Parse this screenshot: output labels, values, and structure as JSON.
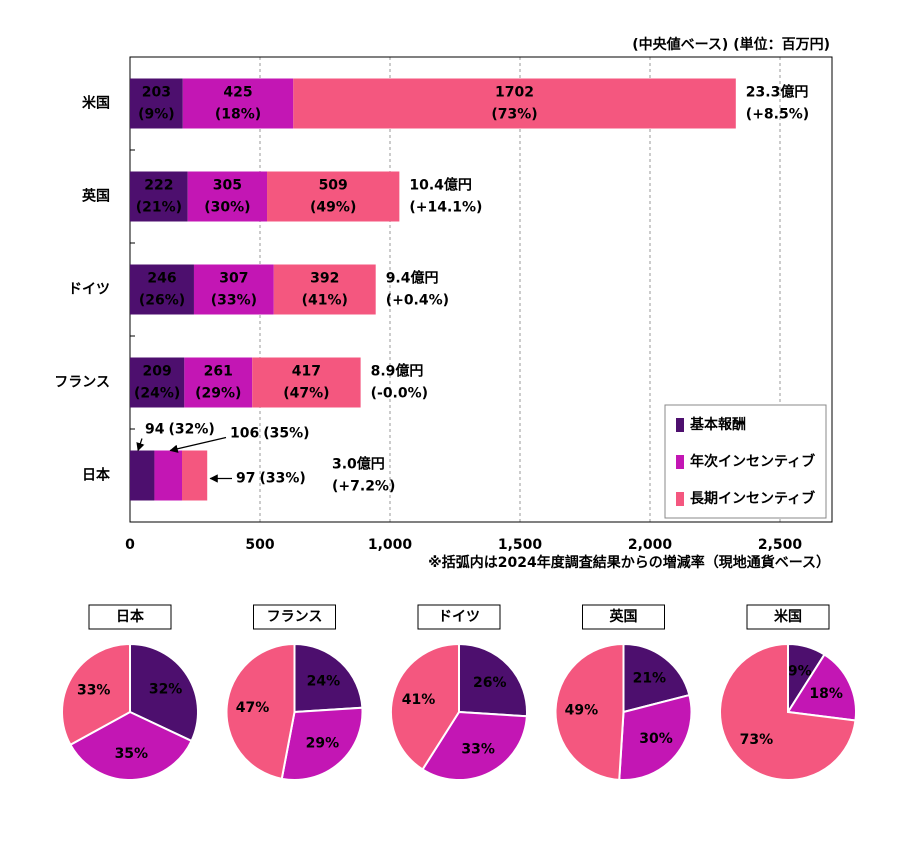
{
  "chart_data": [
    {
      "type": "bar",
      "orientation": "horizontal",
      "stacked": true,
      "subtitle": "(中央値ベース) (単位：百万円)",
      "note": "※括弧内は2024年度調査結果からの増減率（現地通貨ベース）",
      "categories": [
        "米国",
        "英国",
        "ドイツ",
        "フランス",
        "日本"
      ],
      "series": [
        {
          "name": "基本報酬",
          "color": "#4d0f6e",
          "values": [
            203,
            222,
            246,
            209,
            94
          ],
          "share_labels": [
            "(9%)",
            "(21%)",
            "(26%)",
            "(24%)",
            "(32%)"
          ]
        },
        {
          "name": "年次インセンティブ",
          "color": "#c316b4",
          "values": [
            425,
            305,
            307,
            261,
            106
          ],
          "share_labels": [
            "(18%)",
            "(30%)",
            "(33%)",
            "(29%)",
            "(35%)"
          ]
        },
        {
          "name": "長期インセンティブ",
          "color": "#f4577f",
          "values": [
            1702,
            509,
            392,
            417,
            97
          ],
          "share_labels": [
            "(73%)",
            "(49%)",
            "(41%)",
            "(47%)",
            "(33%)"
          ]
        }
      ],
      "totals": [
        {
          "label": "23.3億円",
          "change": "(+8.5%)",
          "color": "#1f78c8"
        },
        {
          "label": "10.4億円",
          "change": "(+14.1%)",
          "color": "#1f78c8"
        },
        {
          "label": "9.4億円",
          "change": "(+0.4%)",
          "color": "#1f78c8"
        },
        {
          "label": "8.9億円",
          "change": "(-0.0%)",
          "color": "#e8201e"
        },
        {
          "label": "3.0億円",
          "change": "(+7.2%)",
          "color": "#1f78c8"
        }
      ],
      "xlim": [
        0,
        2700
      ],
      "xticks": [
        0,
        500,
        {
          "value": 1000,
          "label": "1,000"
        },
        {
          "value": 1500,
          "label": "1,500"
        },
        {
          "value": 2000,
          "label": "2,000"
        },
        {
          "value": 2500,
          "label": "2,500"
        }
      ],
      "grid": true,
      "legend": "lower right"
    },
    {
      "type": "pie",
      "title": "日本",
      "colors": [
        "#4d0f6e",
        "#c316b4",
        "#f4577f"
      ],
      "values": [
        32,
        35,
        33
      ],
      "value_labels": [
        "32%",
        "35%",
        "33%"
      ]
    },
    {
      "type": "pie",
      "title": "フランス",
      "colors": [
        "#4d0f6e",
        "#c316b4",
        "#f4577f"
      ],
      "values": [
        24,
        29,
        47
      ],
      "value_labels": [
        "24%",
        "29%",
        "47%"
      ]
    },
    {
      "type": "pie",
      "title": "ドイツ",
      "colors": [
        "#4d0f6e",
        "#c316b4",
        "#f4577f"
      ],
      "values": [
        26,
        33,
        41
      ],
      "value_labels": [
        "26%",
        "33%",
        "41%"
      ]
    },
    {
      "type": "pie",
      "title": "英国",
      "colors": [
        "#4d0f6e",
        "#c316b4",
        "#f4577f"
      ],
      "values": [
        21,
        30,
        49
      ],
      "value_labels": [
        "21%",
        "30%",
        "49%"
      ]
    },
    {
      "type": "pie",
      "title": "米国",
      "colors": [
        "#4d0f6e",
        "#c316b4",
        "#f4577f"
      ],
      "values": [
        9,
        18,
        73
      ],
      "value_labels": [
        "9%",
        "18%",
        "73%"
      ]
    }
  ]
}
